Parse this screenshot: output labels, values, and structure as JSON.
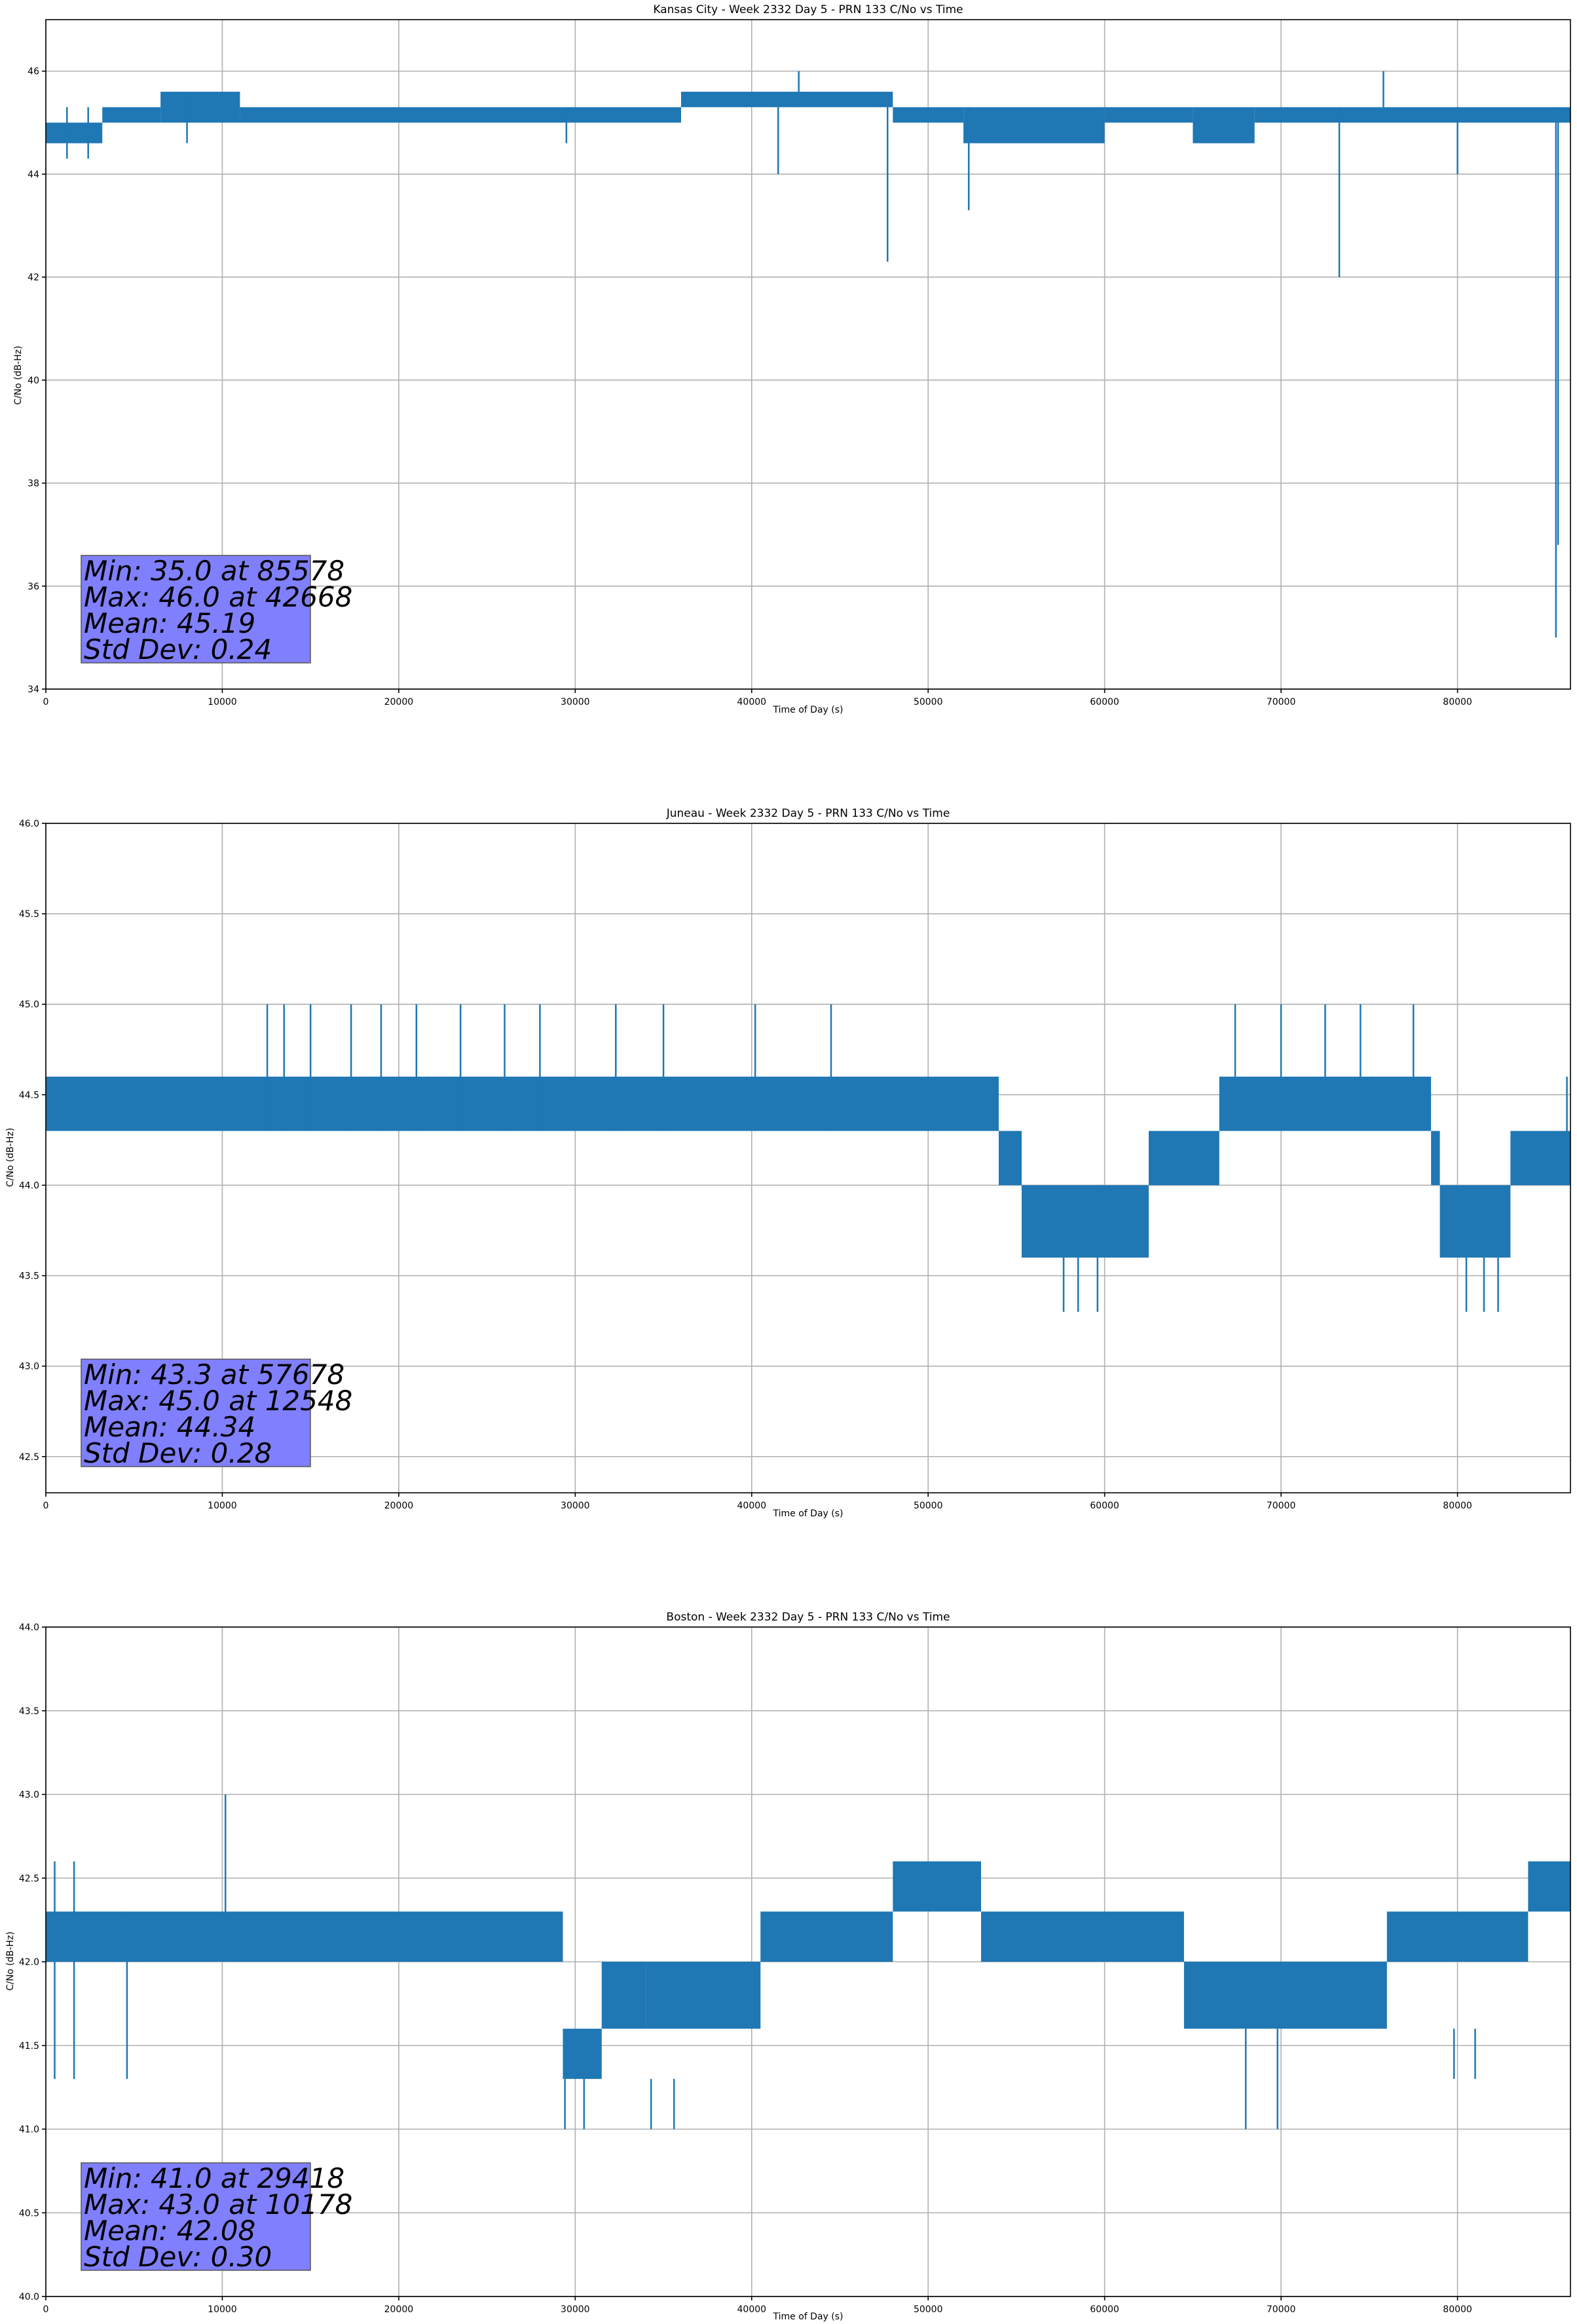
{
  "chart_data": [
    {
      "type": "line",
      "title": "Kansas City - Week 2332 Day 5 - PRN 133 C/No vs Time",
      "xlabel": "Time of Day (s)",
      "ylabel": "C/No (dB-Hz)",
      "xlim": [
        0,
        86400
      ],
      "ylim": [
        34,
        47
      ],
      "xticks": [
        0,
        10000,
        20000,
        30000,
        40000,
        50000,
        60000,
        70000,
        80000
      ],
      "yticks": [
        34,
        36,
        38,
        40,
        42,
        44,
        46
      ],
      "ytick_labels": [
        "34",
        "36",
        "38",
        "40",
        "42",
        "44",
        "46"
      ],
      "grid": true,
      "series_color": "#1f77b4",
      "stats_box_color": "#8080ff",
      "stats": [
        "Min: 35.0 at 85578",
        "Max: 46.0 at 42668",
        "Mean: 45.19",
        "Std Dev: 0.24"
      ],
      "bands": [
        {
          "x": [
            0,
            3200
          ],
          "low": 44.6,
          "high": 45.0
        },
        {
          "x": [
            3200,
            6500
          ],
          "low": 45.0,
          "high": 45.3
        },
        {
          "x": [
            6500,
            11000
          ],
          "low": 45.0,
          "high": 45.6
        },
        {
          "x": [
            11000,
            36000
          ],
          "low": 45.0,
          "high": 45.3
        },
        {
          "x": [
            36000,
            48000
          ],
          "low": 45.3,
          "high": 45.6
        },
        {
          "x": [
            48000,
            52000
          ],
          "low": 45.0,
          "high": 45.3
        },
        {
          "x": [
            52000,
            60000
          ],
          "low": 44.6,
          "high": 45.3
        },
        {
          "x": [
            60000,
            65000
          ],
          "low": 45.0,
          "high": 45.3
        },
        {
          "x": [
            65000,
            68500
          ],
          "low": 44.6,
          "high": 45.3
        },
        {
          "x": [
            68500,
            86400
          ],
          "low": 45.0,
          "high": 45.3
        }
      ],
      "spikes": [
        {
          "x": 1200,
          "low": 44.3,
          "high": 45.3
        },
        {
          "x": 2400,
          "low": 44.3,
          "high": 45.3
        },
        {
          "x": 8000,
          "low": 44.6,
          "high": 45.6
        },
        {
          "x": 29500,
          "low": 44.6,
          "high": 45.3
        },
        {
          "x": 41500,
          "low": 44.0,
          "high": 45.3
        },
        {
          "x": 42668,
          "low": 45.3,
          "high": 46.0
        },
        {
          "x": 47700,
          "low": 42.3,
          "high": 45.3
        },
        {
          "x": 52300,
          "low": 43.3,
          "high": 45.3
        },
        {
          "x": 73300,
          "low": 42.0,
          "high": 45.3
        },
        {
          "x": 75800,
          "low": 45.3,
          "high": 46.0
        },
        {
          "x": 80000,
          "low": 44.0,
          "high": 45.3
        },
        {
          "x": 85578,
          "low": 35.0,
          "high": 45.3
        },
        {
          "x": 85700,
          "low": 36.8,
          "high": 45.3
        }
      ]
    },
    {
      "type": "line",
      "title": "Juneau - Week 2332 Day 5 - PRN 133 C/No vs Time",
      "xlabel": "Time of Day (s)",
      "ylabel": "C/No (dB-Hz)",
      "xlim": [
        0,
        86400
      ],
      "ylim": [
        42.3,
        46.0
      ],
      "xticks": [
        0,
        10000,
        20000,
        30000,
        40000,
        50000,
        60000,
        70000,
        80000
      ],
      "yticks": [
        42.5,
        43.0,
        43.5,
        44.0,
        44.5,
        45.0,
        45.5,
        46.0
      ],
      "ytick_labels": [
        "42.5",
        "43.0",
        "43.5",
        "44.0",
        "44.5",
        "45.0",
        "45.5",
        "46.0"
      ],
      "grid": true,
      "series_color": "#1f77b4",
      "stats_box_color": "#8080ff",
      "stats": [
        "Min: 43.3 at 57678",
        "Max: 45.0 at 12548",
        "Mean: 44.34",
        "Std Dev: 0.28"
      ],
      "bands": [
        {
          "x": [
            0,
            54000
          ],
          "low": 44.3,
          "high": 44.6
        },
        {
          "x": [
            54000,
            55300
          ],
          "low": 44.0,
          "high": 44.3
        },
        {
          "x": [
            55300,
            62500
          ],
          "low": 43.6,
          "high": 44.0
        },
        {
          "x": [
            62500,
            66500
          ],
          "low": 44.0,
          "high": 44.3
        },
        {
          "x": [
            66500,
            78500
          ],
          "low": 44.3,
          "high": 44.6
        },
        {
          "x": [
            78500,
            79000
          ],
          "low": 44.0,
          "high": 44.3
        },
        {
          "x": [
            79000,
            83000
          ],
          "low": 43.6,
          "high": 44.0
        },
        {
          "x": [
            83000,
            86400
          ],
          "low": 44.0,
          "high": 44.3
        }
      ],
      "spikes": [
        {
          "x": 12548,
          "low": 44.3,
          "high": 45.0
        },
        {
          "x": 13500,
          "low": 44.3,
          "high": 45.0
        },
        {
          "x": 15000,
          "low": 44.3,
          "high": 45.0
        },
        {
          "x": 17300,
          "low": 44.3,
          "high": 45.0
        },
        {
          "x": 19000,
          "low": 44.3,
          "high": 45.0
        },
        {
          "x": 21000,
          "low": 44.3,
          "high": 45.0
        },
        {
          "x": 23500,
          "low": 44.3,
          "high": 45.0
        },
        {
          "x": 26000,
          "low": 44.3,
          "high": 45.0
        },
        {
          "x": 28000,
          "low": 44.3,
          "high": 45.0
        },
        {
          "x": 32300,
          "low": 44.3,
          "high": 45.0
        },
        {
          "x": 35000,
          "low": 44.3,
          "high": 45.0
        },
        {
          "x": 40200,
          "low": 44.3,
          "high": 45.0
        },
        {
          "x": 44500,
          "low": 44.3,
          "high": 45.0
        },
        {
          "x": 57678,
          "low": 43.3,
          "high": 43.6
        },
        {
          "x": 58500,
          "low": 43.3,
          "high": 43.6
        },
        {
          "x": 59600,
          "low": 43.3,
          "high": 43.6
        },
        {
          "x": 67400,
          "low": 44.6,
          "high": 45.0
        },
        {
          "x": 70000,
          "low": 44.6,
          "high": 45.0
        },
        {
          "x": 72500,
          "low": 44.6,
          "high": 45.0
        },
        {
          "x": 74500,
          "low": 44.6,
          "high": 45.0
        },
        {
          "x": 77500,
          "low": 44.6,
          "high": 45.0
        },
        {
          "x": 80500,
          "low": 43.3,
          "high": 43.6
        },
        {
          "x": 81500,
          "low": 43.3,
          "high": 43.6
        },
        {
          "x": 82300,
          "low": 43.3,
          "high": 43.6
        },
        {
          "x": 86200,
          "low": 44.3,
          "high": 44.6
        }
      ]
    },
    {
      "type": "line",
      "title": "Boston - Week 2332 Day 5 - PRN 133 C/No vs Time",
      "xlabel": "Time of Day (s)",
      "ylabel": "C/No (dB-Hz)",
      "xlim": [
        0,
        86400
      ],
      "ylim": [
        40.0,
        44.0
      ],
      "xticks": [
        0,
        10000,
        20000,
        30000,
        40000,
        50000,
        60000,
        70000,
        80000
      ],
      "yticks": [
        40.0,
        40.5,
        41.0,
        41.5,
        42.0,
        42.5,
        43.0,
        43.5,
        44.0
      ],
      "ytick_labels": [
        "40.0",
        "40.5",
        "41.0",
        "41.5",
        "42.0",
        "42.5",
        "43.0",
        "43.5",
        "44.0"
      ],
      "grid": true,
      "series_color": "#1f77b4",
      "stats_box_color": "#8080ff",
      "stats": [
        "Min: 41.0 at 29418",
        "Max: 43.0 at 10178",
        "Mean: 42.08",
        "Std Dev: 0.30"
      ],
      "bands": [
        {
          "x": [
            0,
            29300
          ],
          "low": 42.0,
          "high": 42.3
        },
        {
          "x": [
            29300,
            31500
          ],
          "low": 41.3,
          "high": 41.6
        },
        {
          "x": [
            31500,
            34000
          ],
          "low": 41.6,
          "high": 42.0
        },
        {
          "x": [
            34000,
            36000
          ],
          "low": 41.6,
          "high": 42.0
        },
        {
          "x": [
            36000,
            40500
          ],
          "low": 41.6,
          "high": 42.0
        },
        {
          "x": [
            40500,
            48000
          ],
          "low": 42.0,
          "high": 42.3
        },
        {
          "x": [
            48000,
            53000
          ],
          "low": 42.3,
          "high": 42.6
        },
        {
          "x": [
            53000,
            64500
          ],
          "low": 42.0,
          "high": 42.3
        },
        {
          "x": [
            64500,
            76000
          ],
          "low": 41.6,
          "high": 42.0
        },
        {
          "x": [
            76000,
            84000
          ],
          "low": 42.0,
          "high": 42.3
        },
        {
          "x": [
            84000,
            86400
          ],
          "low": 42.3,
          "high": 42.6
        }
      ],
      "spikes": [
        {
          "x": 500,
          "low": 41.3,
          "high": 42.6
        },
        {
          "x": 1600,
          "low": 41.3,
          "high": 42.6
        },
        {
          "x": 4600,
          "low": 41.3,
          "high": 42.3
        },
        {
          "x": 10178,
          "low": 42.3,
          "high": 43.0
        },
        {
          "x": 29418,
          "low": 41.0,
          "high": 41.3
        },
        {
          "x": 30500,
          "low": 41.0,
          "high": 41.3
        },
        {
          "x": 34300,
          "low": 41.0,
          "high": 41.3
        },
        {
          "x": 35600,
          "low": 41.0,
          "high": 41.3
        },
        {
          "x": 68000,
          "low": 41.0,
          "high": 41.6
        },
        {
          "x": 69800,
          "low": 41.0,
          "high": 41.6
        },
        {
          "x": 79800,
          "low": 41.3,
          "high": 41.6
        },
        {
          "x": 81000,
          "low": 41.3,
          "high": 41.6
        }
      ]
    }
  ]
}
